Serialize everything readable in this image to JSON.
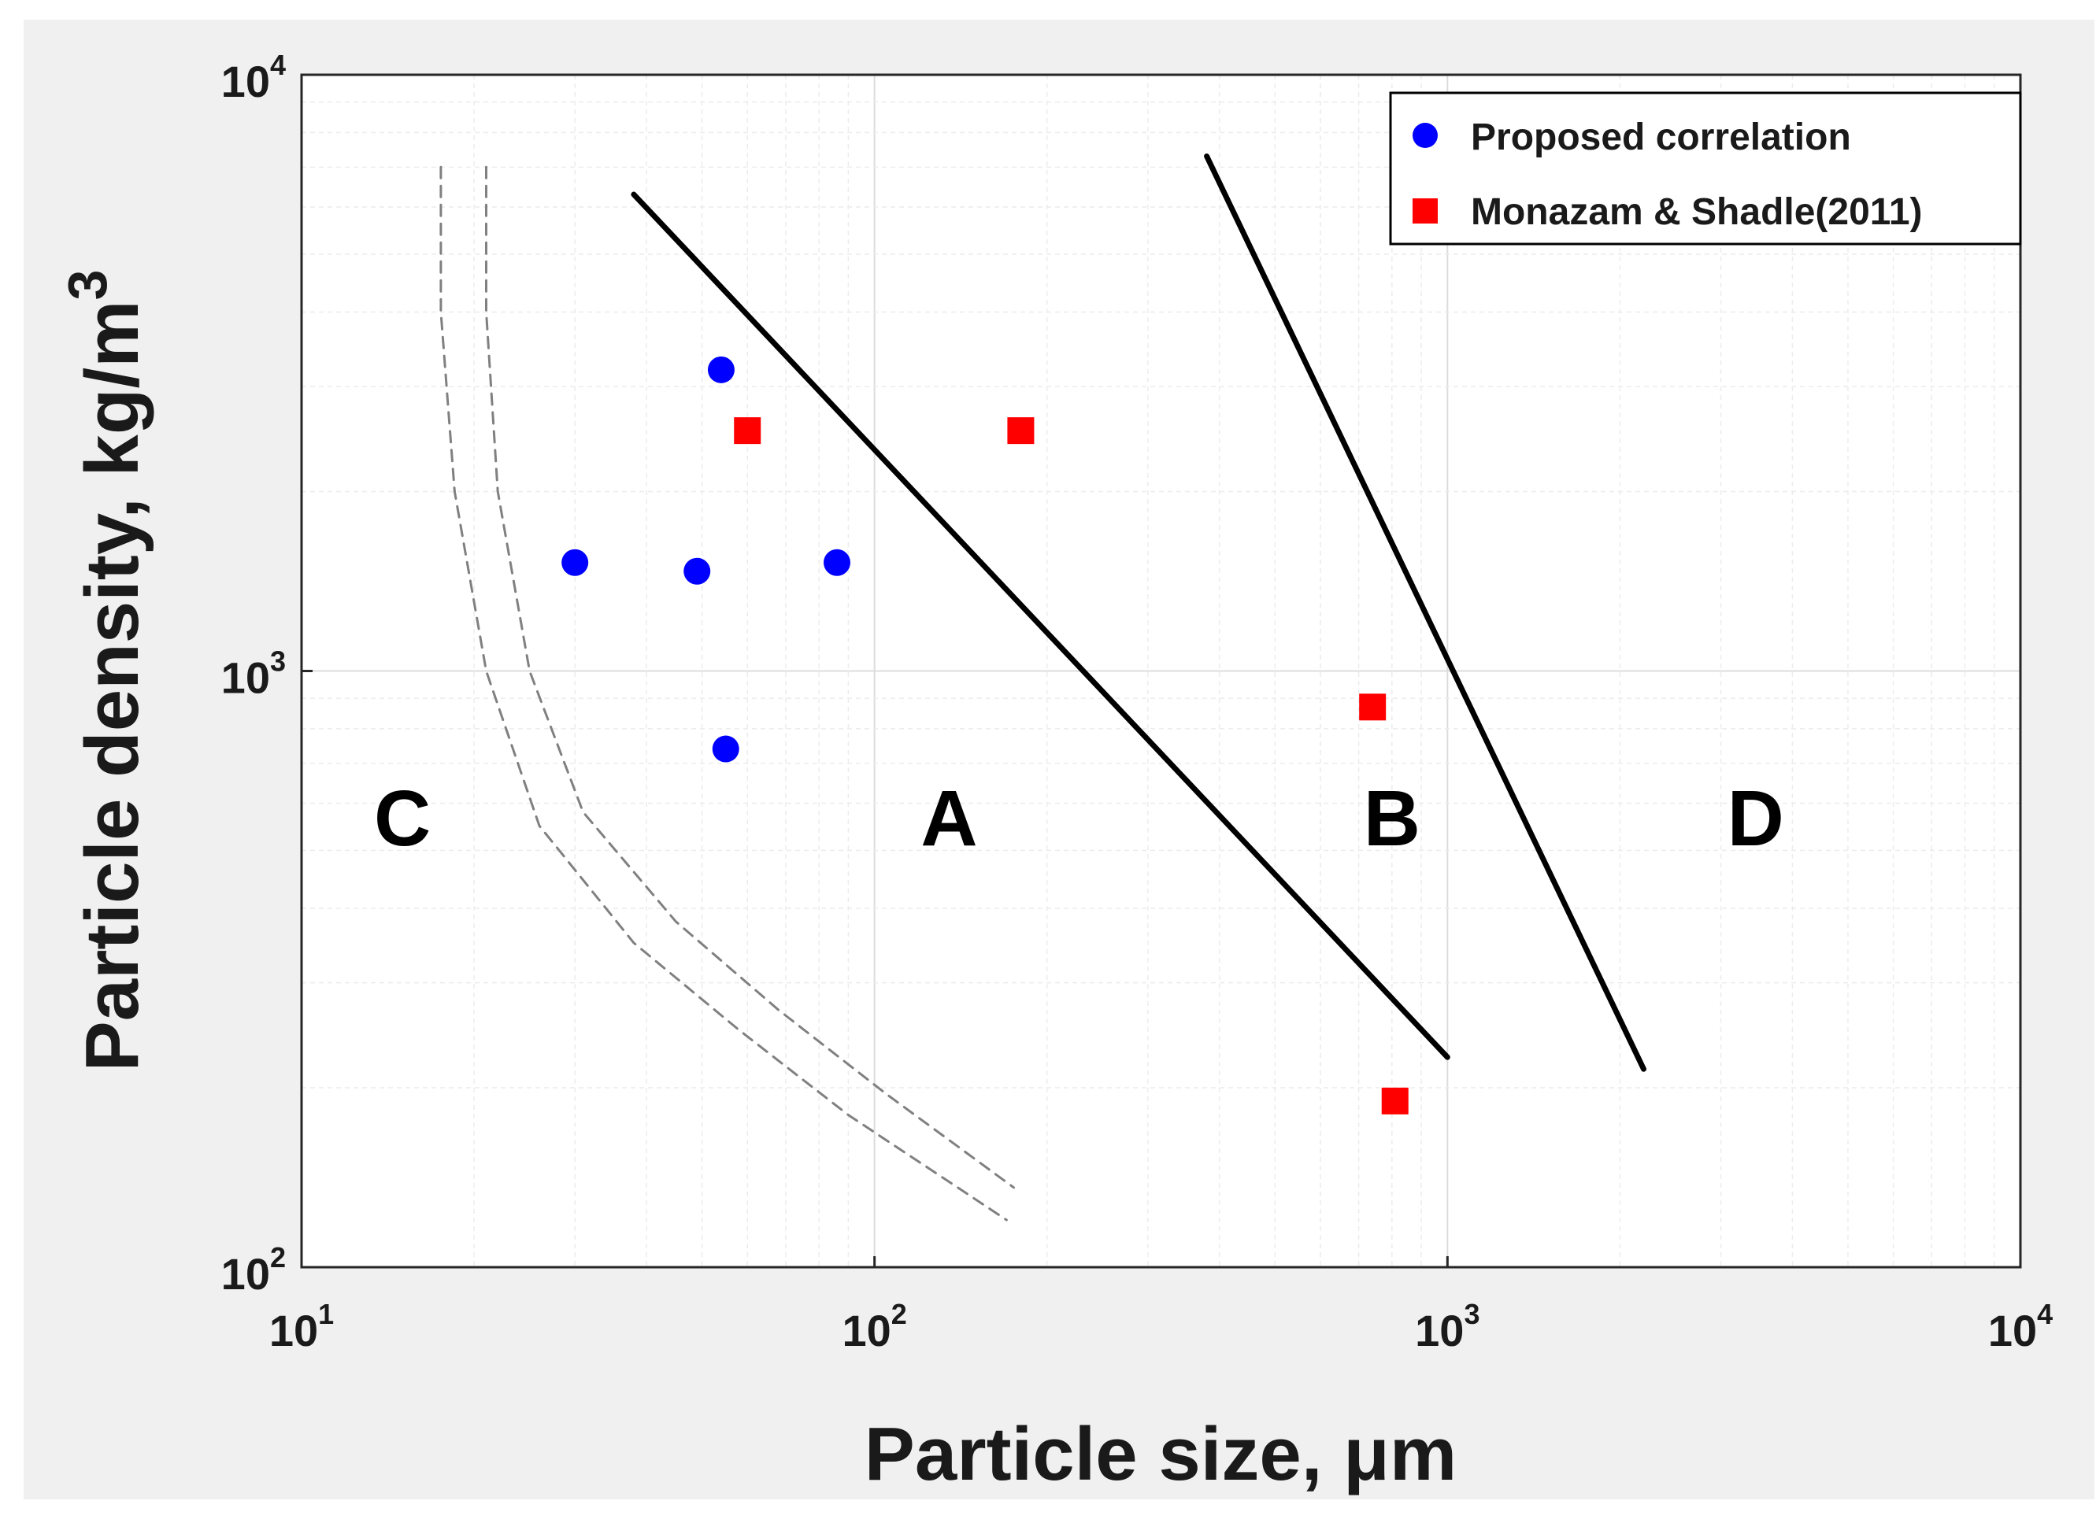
{
  "chart_data": {
    "type": "scatter",
    "xscale": "log",
    "yscale": "log",
    "xlim": [
      10,
      10000
    ],
    "ylim": [
      100,
      10000
    ],
    "xlabel": "Particle size, μm",
    "ylabel": "Particle density, kg/m",
    "ylabel_superscript": "3",
    "grid": true,
    "legend_position": "top-right",
    "xticks": [
      {
        "base": "10",
        "exp": "1",
        "value": 10
      },
      {
        "base": "10",
        "exp": "2",
        "value": 100
      },
      {
        "base": "10",
        "exp": "3",
        "value": 1000
      },
      {
        "base": "10",
        "exp": "4",
        "value": 10000
      }
    ],
    "yticks": [
      {
        "base": "10",
        "exp": "2",
        "value": 100
      },
      {
        "base": "10",
        "exp": "3",
        "value": 1000
      },
      {
        "base": "10",
        "exp": "4",
        "value": 10000
      }
    ],
    "series": [
      {
        "name": "Proposed correlation",
        "marker": "circle",
        "color": "#0000ff",
        "x": [
          54,
          30,
          49,
          86,
          55
        ],
        "y": [
          3200,
          1520,
          1470,
          1520,
          740
        ]
      },
      {
        "name": "Monazam & Shadle(2011)",
        "marker": "square",
        "color": "#ff0000",
        "x": [
          60,
          180,
          740,
          810
        ],
        "y": [
          2530,
          2530,
          870,
          190
        ]
      }
    ],
    "boundaries": [
      {
        "name": "A-B boundary",
        "style": "solid",
        "color": "#000000",
        "x": [
          38,
          1000
        ],
        "y": [
          6300,
          225
        ]
      },
      {
        "name": "B-D boundary",
        "style": "solid",
        "color": "#000000",
        "x": [
          380,
          2200
        ],
        "y": [
          7300,
          215
        ]
      },
      {
        "name": "C-A boundary 1",
        "style": "dashed",
        "color": "#808080",
        "x": [
          17.5,
          17.5,
          18.5,
          21,
          26,
          38,
          58,
          90,
          170
        ],
        "y": [
          7000,
          4000,
          2000,
          1000,
          550,
          350,
          250,
          180,
          120
        ]
      },
      {
        "name": "C-A boundary 2",
        "style": "dashed",
        "color": "#808080",
        "x": [
          21,
          21,
          22,
          25,
          31,
          45,
          68,
          105,
          175
        ],
        "y": [
          7000,
          4000,
          2000,
          1000,
          580,
          380,
          270,
          195,
          136
        ]
      }
    ],
    "region_labels": [
      {
        "text": "C",
        "x": 15,
        "y": 510
      },
      {
        "text": "A",
        "x": 135,
        "y": 510
      },
      {
        "text": "B",
        "x": 800,
        "y": 510
      },
      {
        "text": "D",
        "x": 3450,
        "y": 510
      }
    ]
  }
}
